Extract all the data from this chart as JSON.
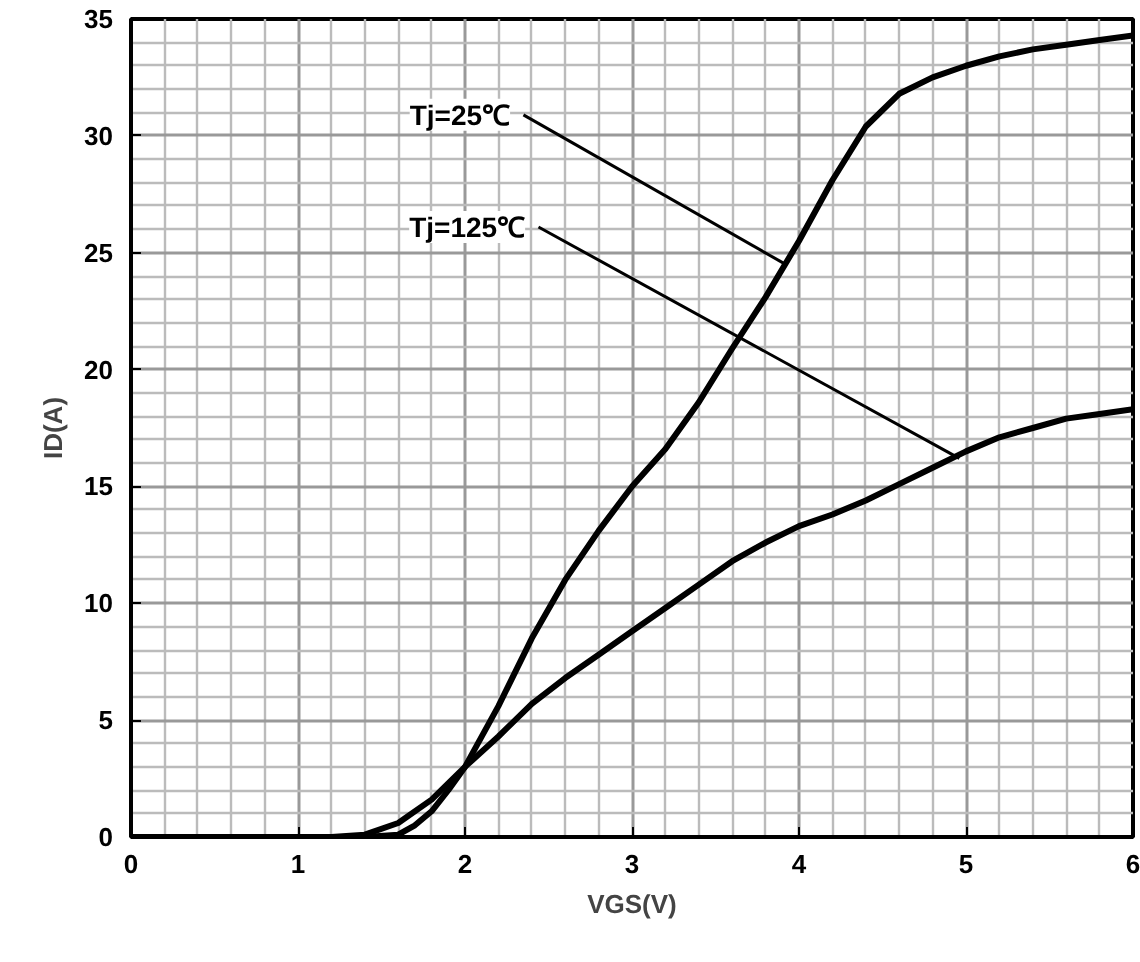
{
  "chart_data": {
    "type": "line",
    "xlabel": "VGS(V)",
    "ylabel": "ID(A)",
    "xlim": [
      0,
      6
    ],
    "ylim": [
      0,
      35
    ],
    "xticks": [
      0,
      1,
      2,
      3,
      4,
      5,
      6
    ],
    "yticks": [
      0,
      5,
      10,
      15,
      20,
      25,
      30,
      35
    ],
    "grid": true,
    "marker": "none",
    "line_style": "solid",
    "series": [
      {
        "color": "#000000",
        "x": [
          0,
          1.0,
          1.4,
          1.6,
          1.7,
          1.8,
          1.9,
          2.0,
          2.2,
          2.4,
          2.6,
          2.8,
          3.0,
          3.2,
          3.4,
          3.6,
          3.8,
          4.0,
          4.2,
          4.4,
          4.6,
          4.8,
          5.0,
          5.2,
          5.4,
          5.6,
          5.8,
          6.0
        ],
        "values": [
          0,
          0,
          0,
          0.1,
          0.5,
          1.1,
          2.0,
          3.0,
          5.6,
          8.5,
          11.0,
          13.1,
          15.0,
          16.6,
          18.6,
          20.9,
          23.1,
          25.5,
          28.1,
          30.4,
          31.8,
          32.5,
          33.0,
          33.4,
          33.7,
          33.9,
          34.1,
          34.3
        ]
      },
      {
        "color": "#000000",
        "x": [
          0,
          1.0,
          1.2,
          1.4,
          1.6,
          1.8,
          2.0,
          2.2,
          2.4,
          2.6,
          2.8,
          3.0,
          3.2,
          3.4,
          3.6,
          3.8,
          4.0,
          4.2,
          4.4,
          4.6,
          4.8,
          5.0,
          5.2,
          5.4,
          5.6,
          5.8,
          6.0
        ],
        "values": [
          0,
          0,
          0,
          0.1,
          0.6,
          1.6,
          3.0,
          4.3,
          5.7,
          6.8,
          7.8,
          8.8,
          9.8,
          10.8,
          11.8,
          12.6,
          13.3,
          13.8,
          14.4,
          15.1,
          15.8,
          16.5,
          17.1,
          17.5,
          17.9,
          18.1,
          18.3
        ]
      }
    ],
    "annotations": [
      {
        "text": "Tj=25℃",
        "x": 3.92,
        "y": 24.5
      },
      {
        "text": "Tj=125℃",
        "x": 4.96,
        "y": 16.2
      }
    ]
  }
}
